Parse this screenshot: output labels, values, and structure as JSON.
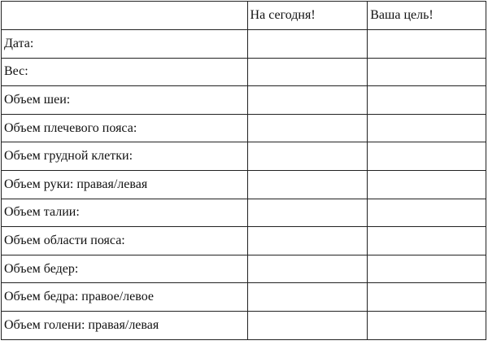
{
  "header": {
    "blank": "",
    "today": "На сегодня!",
    "goal": "Ваша цель!"
  },
  "rows": [
    {
      "label": "Дата:"
    },
    {
      "label": "Вес:"
    },
    {
      "label": "Объем шеи:"
    },
    {
      "label": "Объем плечевого пояса:"
    },
    {
      "label": "Объем грудной клетки:"
    },
    {
      "label": "Объем руки: правая/левая"
    },
    {
      "label": "Объем талии:"
    },
    {
      "label": "Объем области пояса:"
    },
    {
      "label": "Объем бедер:"
    },
    {
      "label": "Объем бедра: правое/левое"
    },
    {
      "label": "Объем голени: правая/левая"
    }
  ]
}
